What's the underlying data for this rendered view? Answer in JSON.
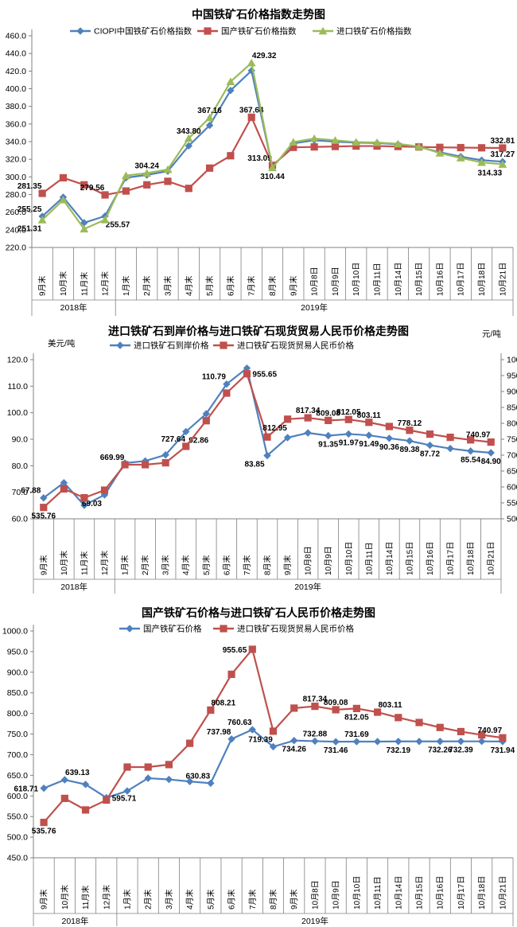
{
  "chart_data": [
    {
      "type": "line",
      "title": "中国铁矿石价格指数走势图",
      "x_categories": [
        "9月末",
        "10月末",
        "11月末",
        "12月末",
        "1月末",
        "2月末",
        "3月末",
        "4月末",
        "5月末",
        "6月末",
        "7月末",
        "8月末",
        "9月末",
        "10月8日",
        "10月9日",
        "10月10日",
        "10月11日",
        "10月14日",
        "10月15日",
        "10月16日",
        "10月17日",
        "10月18日",
        "10月21日"
      ],
      "year_groups": [
        {
          "label": "2018年",
          "from": 0,
          "to": 3
        },
        {
          "label": "2019年",
          "from": 4,
          "to": 22
        }
      ],
      "y_axis": {
        "min": 220,
        "max": 460,
        "step": 20
      },
      "grid": "off",
      "legend_position": "top",
      "series": [
        {
          "name": "CIOPI中国铁矿石价格指数",
          "color": "#4F81BD",
          "marker": "diamond",
          "axis": "y",
          "values": [
            255.25,
            277,
            248,
            255.57,
            299,
            302.2,
            306.5,
            335.2,
            358.5,
            398,
            420.5,
            310.8,
            338,
            341.5,
            340,
            338.8,
            338.4,
            337,
            334,
            328,
            323,
            319,
            317.27
          ],
          "labels": [
            {
              "i": 0,
              "t": "255.25",
              "p": "al"
            },
            {
              "i": 3,
              "t": "255.57",
              "p": "br"
            },
            {
              "i": 22,
              "t": "317.27",
              "p": "a"
            }
          ]
        },
        {
          "name": "国产铁矿石价格指数",
          "color": "#C0504D",
          "marker": "square",
          "axis": "y",
          "values": [
            281.35,
            299,
            291,
            279.56,
            284,
            291,
            295,
            287,
            310,
            324,
            367.64,
            313.09,
            333.5,
            334,
            334.5,
            335,
            335,
            334.5,
            334,
            333.5,
            333.2,
            333,
            332.81
          ],
          "labels": [
            {
              "i": 0,
              "t": "281.35",
              "p": "al"
            },
            {
              "i": 3,
              "t": "279.56",
              "p": "al"
            },
            {
              "i": 10,
              "t": "367.64",
              "p": "a"
            },
            {
              "i": 11,
              "t": "313.09",
              "p": "al"
            },
            {
              "i": 22,
              "t": "332.81",
              "p": "a"
            }
          ]
        },
        {
          "name": "进口铁矿石价格指数",
          "color": "#9BBB59",
          "marker": "triangle",
          "axis": "y",
          "values": [
            251.31,
            274,
            241,
            251.4,
            301.5,
            304.24,
            308.5,
            343.8,
            367.16,
            408,
            429.32,
            310.44,
            339.5,
            343.5,
            341.5,
            339.5,
            339,
            337.5,
            334.5,
            327,
            321.5,
            316.5,
            314.33
          ],
          "labels": [
            {
              "i": 0,
              "t": "251.31",
              "p": "bl"
            },
            {
              "i": 5,
              "t": "304.24",
              "p": "a"
            },
            {
              "i": 7,
              "t": "343.80",
              "p": "a"
            },
            {
              "i": 8,
              "t": "367.16",
              "p": "a"
            },
            {
              "i": 10,
              "t": "429.32",
              "p": "ar"
            },
            {
              "i": 11,
              "t": "310.44",
              "p": "b"
            },
            {
              "i": 22,
              "t": "314.33",
              "p": "bl"
            }
          ]
        }
      ]
    },
    {
      "type": "line",
      "title": "进口铁矿石到岸价格与进口铁矿石现货贸易人民币价格走势图",
      "unit_left": "美元/吨",
      "unit_right": "元/吨",
      "x_categories": [
        "9月末",
        "10月末",
        "11月末",
        "12月末",
        "1月末",
        "2月末",
        "3月末",
        "4月末",
        "5月末",
        "6月末",
        "7月末",
        "8月末",
        "9月末",
        "10月8日",
        "10月9日",
        "10月10日",
        "10月11日",
        "10月14日",
        "10月15日",
        "10月16日",
        "10月17日",
        "10月18日",
        "10月21日"
      ],
      "year_groups": [
        {
          "label": "2018年",
          "from": 0,
          "to": 3
        },
        {
          "label": "2019年",
          "from": 4,
          "to": 22
        }
      ],
      "y_axis": {
        "min": 60,
        "max": 120,
        "step": 10
      },
      "y2_axis": {
        "min": 500,
        "max": 1000,
        "step": 50
      },
      "grid": "off",
      "legend_position": "top",
      "series": [
        {
          "name": "进口铁矿石到岸价格",
          "color": "#4F81BD",
          "marker": "diamond",
          "axis": "y",
          "values": [
            67.88,
            73.6,
            65.1,
            69.03,
            81,
            81.8,
            84.1,
            92.86,
            99.6,
            110.79,
            116.8,
            83.85,
            90.6,
            92.4,
            91.35,
            91.97,
            91.49,
            90.36,
            89.38,
            87.72,
            86.5,
            85.54,
            84.9
          ],
          "labels": [
            {
              "i": 0,
              "t": "67.88",
              "p": "al"
            },
            {
              "i": 3,
              "t": "69.03",
              "p": "bl"
            },
            {
              "i": 7,
              "t": "92.86",
              "p": "br"
            },
            {
              "i": 9,
              "t": "110.79",
              "p": "al"
            },
            {
              "i": 11,
              "t": "83.85",
              "p": "bl"
            },
            {
              "i": 14,
              "t": "91.35",
              "p": "b"
            },
            {
              "i": 15,
              "t": "91.97",
              "p": "b"
            },
            {
              "i": 16,
              "t": "91.49",
              "p": "b"
            },
            {
              "i": 17,
              "t": "90.36",
              "p": "b"
            },
            {
              "i": 18,
              "t": "89.38",
              "p": "b"
            },
            {
              "i": 19,
              "t": "87.72",
              "p": "b"
            },
            {
              "i": 21,
              "t": "85.54",
              "p": "b"
            },
            {
              "i": 22,
              "t": "84.90",
              "p": "b"
            }
          ]
        },
        {
          "name": "进口铁矿石现货贸易人民币价格",
          "color": "#C0504D",
          "marker": "square",
          "axis": "y2",
          "values": [
            535.76,
            594,
            566,
            590,
            669.99,
            670,
            676,
            727.64,
            808.21,
            895,
            955.65,
            757,
            812.95,
            817.34,
            809.08,
            812.05,
            803.11,
            790,
            778.12,
            766,
            756,
            748,
            740.97
          ],
          "labels": [
            {
              "i": 0,
              "t": "535.76",
              "p": "b"
            },
            {
              "i": 4,
              "t": "669.99",
              "p": "al"
            },
            {
              "i": 7,
              "t": "727.64",
              "p": "al"
            },
            {
              "i": 10,
              "t": "955.65",
              "p": "r"
            },
            {
              "i": 12,
              "t": "812.95",
              "p": "bl"
            },
            {
              "i": 13,
              "t": "817.34",
              "p": "a"
            },
            {
              "i": 14,
              "t": "809.08",
              "p": "a"
            },
            {
              "i": 15,
              "t": "812.05",
              "p": "a"
            },
            {
              "i": 16,
              "t": "803.11",
              "p": "a"
            },
            {
              "i": 18,
              "t": "778.12",
              "p": "a"
            },
            {
              "i": 22,
              "t": "740.97",
              "p": "al"
            }
          ]
        }
      ]
    },
    {
      "type": "line",
      "title": "国产铁矿石价格与进口铁矿石人民币价格走势图",
      "x_categories": [
        "9月末",
        "10月末",
        "11月末",
        "12月末",
        "1月末",
        "2月末",
        "3月末",
        "4月末",
        "5月末",
        "6月末",
        "7月末",
        "8月末",
        "9月末",
        "10月8日",
        "10月9日",
        "10月10日",
        "10月11日",
        "10月14日",
        "10月15日",
        "10月16日",
        "10月17日",
        "10月18日",
        "10月21日"
      ],
      "year_groups": [
        {
          "label": "2018年",
          "from": 0,
          "to": 3
        },
        {
          "label": "2019年",
          "from": 4,
          "to": 22
        }
      ],
      "y_axis": {
        "min": 450,
        "max": 1000,
        "step": 50
      },
      "grid": "off",
      "legend_position": "top",
      "series": [
        {
          "name": "国产铁矿石价格",
          "color": "#4F81BD",
          "marker": "diamond",
          "axis": "y",
          "values": [
            618.71,
            639.13,
            628,
            595.71,
            612,
            643,
            640,
            635,
            630.83,
            737.98,
            760.63,
            719.39,
            734.26,
            732.88,
            731.46,
            731.69,
            731.8,
            732.19,
            732.2,
            732.26,
            732.39,
            732.4,
            731.94
          ],
          "labels": [
            {
              "i": 0,
              "t": "618.71",
              "p": "l"
            },
            {
              "i": 1,
              "t": "639.13",
              "p": "ar"
            },
            {
              "i": 3,
              "t": "595.71",
              "p": "r"
            },
            {
              "i": 8,
              "t": "630.83",
              "p": "al"
            },
            {
              "i": 9,
              "t": "737.98",
              "p": "al"
            },
            {
              "i": 10,
              "t": "760.63",
              "p": "al"
            },
            {
              "i": 11,
              "t": "719.39",
              "p": "al"
            },
            {
              "i": 12,
              "t": "734.26",
              "p": "b"
            },
            {
              "i": 13,
              "t": "732.88",
              "p": "a"
            },
            {
              "i": 14,
              "t": "731.46",
              "p": "b"
            },
            {
              "i": 15,
              "t": "731.69",
              "p": "a"
            },
            {
              "i": 17,
              "t": "732.19",
              "p": "b"
            },
            {
              "i": 19,
              "t": "732.26",
              "p": "b"
            },
            {
              "i": 20,
              "t": "732.39",
              "p": "b"
            },
            {
              "i": 22,
              "t": "731.94",
              "p": "b"
            }
          ]
        },
        {
          "name": "进口铁矿石现货贸易人民币价格",
          "color": "#C0504D",
          "marker": "square",
          "axis": "y",
          "values": [
            535.76,
            594,
            566,
            590,
            669.99,
            670,
            676,
            727.64,
            808.21,
            895,
            955.65,
            757,
            812.95,
            817.34,
            809.08,
            812.05,
            803.11,
            790,
            778.12,
            766,
            756,
            748,
            740.97
          ],
          "labels": [
            {
              "i": 0,
              "t": "535.76",
              "p": "b"
            },
            {
              "i": 8,
              "t": "808.21",
              "p": "ar"
            },
            {
              "i": 10,
              "t": "955.65",
              "p": "l"
            },
            {
              "i": 13,
              "t": "817.34",
              "p": "a"
            },
            {
              "i": 14,
              "t": "809.08",
              "p": "a"
            },
            {
              "i": 15,
              "t": "812.05",
              "p": "b"
            },
            {
              "i": 16,
              "t": "803.11",
              "p": "ar"
            },
            {
              "i": 22,
              "t": "740.97",
              "p": "al"
            }
          ]
        }
      ]
    }
  ]
}
